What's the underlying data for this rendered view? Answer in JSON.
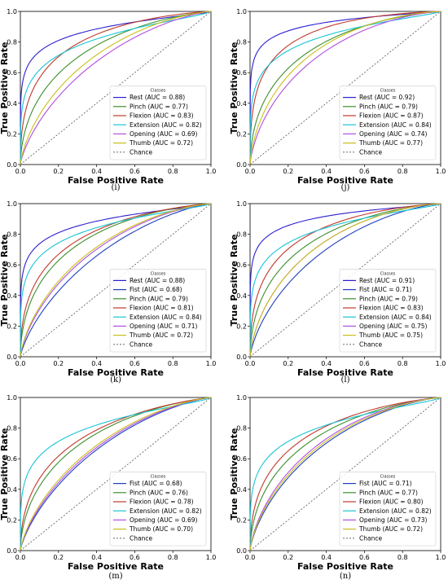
{
  "axes": {
    "xlabel": "False Positive Rate",
    "ylabel": "True Positive Rate",
    "ticks": [
      "0.0",
      "0.2",
      "0.4",
      "0.6",
      "0.8",
      "1.0"
    ]
  },
  "colors": {
    "Rest": "#2b1fd0",
    "Fist": "#1f3fbf",
    "Pinch": "#3c8f2c",
    "Flexion": "#c0392b",
    "Extension": "#19c4d6",
    "Opening": "#b24fe0",
    "Thumb": "#c9bf1a",
    "Chance": "#555555"
  },
  "chart_data": [
    {
      "type": "line",
      "panel_label": "(i)",
      "legend_title": "Classes",
      "xlim": [
        0,
        1
      ],
      "ylim": [
        0,
        1
      ],
      "legend_position": "lower-right",
      "grid": false,
      "series": [
        {
          "name": "Rest (AUC = 0.88)",
          "class": "Rest",
          "auc": 0.88
        },
        {
          "name": "Pinch (AUC = 0.77)",
          "class": "Pinch",
          "auc": 0.77
        },
        {
          "name": "Flexion (AUC = 0.83)",
          "class": "Flexion",
          "auc": 0.83
        },
        {
          "name": "Extension (AUC = 0.82)",
          "class": "Extension",
          "auc": 0.82
        },
        {
          "name": "Opening (AUC = 0.69)",
          "class": "Opening",
          "auc": 0.69
        },
        {
          "name": "Thumb (AUC = 0.72)",
          "class": "Thumb",
          "auc": 0.72
        }
      ],
      "chance_label": "Chance"
    },
    {
      "type": "line",
      "panel_label": "(j)",
      "legend_title": "Classes",
      "xlim": [
        0,
        1
      ],
      "ylim": [
        0,
        1
      ],
      "legend_position": "lower-right",
      "grid": false,
      "series": [
        {
          "name": "Rest (AUC = 0.92)",
          "class": "Rest",
          "auc": 0.92
        },
        {
          "name": "Pinch (AUC = 0.79)",
          "class": "Pinch",
          "auc": 0.79
        },
        {
          "name": "Flexion (AUC = 0.87)",
          "class": "Flexion",
          "auc": 0.87
        },
        {
          "name": "Extension (AUC = 0.84)",
          "class": "Extension",
          "auc": 0.84
        },
        {
          "name": "Opening (AUC = 0.74)",
          "class": "Opening",
          "auc": 0.74
        },
        {
          "name": "Thumb (AUC = 0.77)",
          "class": "Thumb",
          "auc": 0.77
        }
      ],
      "chance_label": "Chance"
    },
    {
      "type": "line",
      "panel_label": "(k)",
      "legend_title": "Classes",
      "xlim": [
        0,
        1
      ],
      "ylim": [
        0,
        1
      ],
      "legend_position": "lower-right",
      "grid": false,
      "series": [
        {
          "name": "Rest (AUC = 0.88)",
          "class": "Rest",
          "auc": 0.88
        },
        {
          "name": "Fist (AUC = 0.68)",
          "class": "Fist",
          "auc": 0.68
        },
        {
          "name": "Pinch (AUC = 0.79)",
          "class": "Pinch",
          "auc": 0.79
        },
        {
          "name": "Flexion (AUC = 0.81)",
          "class": "Flexion",
          "auc": 0.81
        },
        {
          "name": "Extension (AUC = 0.84)",
          "class": "Extension",
          "auc": 0.84
        },
        {
          "name": "Opening (AUC = 0.71)",
          "class": "Opening",
          "auc": 0.71
        },
        {
          "name": "Thumb (AUC = 0.72)",
          "class": "Thumb",
          "auc": 0.72
        }
      ],
      "chance_label": "Chance"
    },
    {
      "type": "line",
      "panel_label": "(l)",
      "legend_title": "Classes",
      "xlim": [
        0,
        1
      ],
      "ylim": [
        0,
        1
      ],
      "legend_position": "lower-right",
      "grid": false,
      "series": [
        {
          "name": "Rest (AUC = 0.91)",
          "class": "Rest",
          "auc": 0.91
        },
        {
          "name": "Fist (AUC = 0.71)",
          "class": "Fist",
          "auc": 0.71
        },
        {
          "name": "Pinch (AUC = 0.79)",
          "class": "Pinch",
          "auc": 0.79
        },
        {
          "name": "Flexion (AUC = 0.83)",
          "class": "Flexion",
          "auc": 0.83
        },
        {
          "name": "Extension (AUC = 0.84)",
          "class": "Extension",
          "auc": 0.84
        },
        {
          "name": "Opening (AUC = 0.75)",
          "class": "Opening",
          "auc": 0.75
        },
        {
          "name": "Thumb (AUC = 0.75)",
          "class": "Thumb",
          "auc": 0.75
        }
      ],
      "chance_label": "Chance"
    },
    {
      "type": "line",
      "panel_label": "(m)",
      "legend_title": "Classes",
      "xlim": [
        0,
        1
      ],
      "ylim": [
        0,
        1
      ],
      "legend_position": "lower-right",
      "grid": false,
      "series": [
        {
          "name": "Fist (AUC = 0.68)",
          "class": "Fist",
          "auc": 0.68
        },
        {
          "name": "Pinch (AUC = 0.76)",
          "class": "Pinch",
          "auc": 0.76
        },
        {
          "name": "Flexion (AUC = 0.78)",
          "class": "Flexion",
          "auc": 0.78
        },
        {
          "name": "Extension (AUC = 0.82)",
          "class": "Extension",
          "auc": 0.82
        },
        {
          "name": "Opening (AUC = 0.69)",
          "class": "Opening",
          "auc": 0.69
        },
        {
          "name": "Thumb (AUC = 0.70)",
          "class": "Thumb",
          "auc": 0.7
        }
      ],
      "chance_label": "Chance"
    },
    {
      "type": "line",
      "panel_label": "(n)",
      "legend_title": "Classes",
      "xlim": [
        0,
        1
      ],
      "ylim": [
        0,
        1
      ],
      "legend_position": "lower-right",
      "grid": false,
      "series": [
        {
          "name": "Fist (AUC = 0.71)",
          "class": "Fist",
          "auc": 0.71
        },
        {
          "name": "Pinch (AUC = 0.77)",
          "class": "Pinch",
          "auc": 0.77
        },
        {
          "name": "Flexion (AUC = 0.80)",
          "class": "Flexion",
          "auc": 0.8
        },
        {
          "name": "Extension (AUC = 0.82)",
          "class": "Extension",
          "auc": 0.82
        },
        {
          "name": "Opening (AUC = 0.73)",
          "class": "Opening",
          "auc": 0.73
        },
        {
          "name": "Thumb (AUC = 0.72)",
          "class": "Thumb",
          "auc": 0.72
        }
      ],
      "chance_label": "Chance"
    }
  ]
}
